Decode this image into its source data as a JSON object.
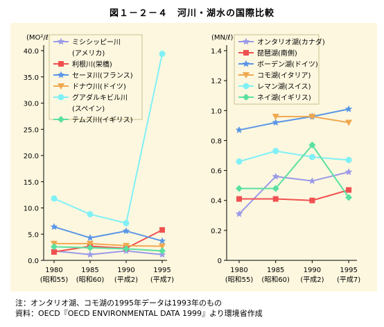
{
  "figure": {
    "title": "図１－２－４　河川・湖水の国際比較",
    "note_line1": "注：オンタリオ湖、コモ湖の1995年データは1993年のもの",
    "note_line2": "資料：OECD『OECD ENVIRONMENTAL DATA 1999』より環境省作成"
  },
  "chart_data": [
    {
      "type": "line",
      "name": "rivers",
      "ylabel": "(MO²/ℓ)",
      "ylim": [
        0,
        40
      ],
      "yticks": [
        "0.0",
        "5.0",
        "10.0",
        "15.0",
        "20.0",
        "25.0",
        "30.0",
        "35.0",
        "40.0"
      ],
      "ytick_values": [
        0,
        5,
        10,
        15,
        20,
        25,
        30,
        35,
        40
      ],
      "x": [
        1980,
        1985,
        1990,
        1995
      ],
      "xtick_labels": [
        "1980",
        "1985",
        "1990",
        "1995"
      ],
      "xtick_sublabels": [
        "(昭和55)",
        "(昭和60)",
        "(平成2)",
        "(平成7)"
      ],
      "grid": false,
      "legend_position": "top-left",
      "series": [
        {
          "name": "ミシシッピー川",
          "name2": "(アメリカ)",
          "color": "#9a9ae8",
          "marker": "star",
          "values": [
            1.8,
            1.1,
            1.8,
            1.1
          ]
        },
        {
          "name": "利根川(栄橋)",
          "color": "#f05050",
          "marker": "square",
          "values": [
            1.6,
            2.7,
            2.3,
            5.8
          ]
        },
        {
          "name": "セーヌ川(フランス)",
          "color": "#5a96e6",
          "marker": "star",
          "values": [
            6.4,
            4.3,
            5.6,
            3.7
          ]
        },
        {
          "name": "ドナウ川(ドイツ)",
          "color": "#f0a850",
          "marker": "triangle-down",
          "values": [
            3.2,
            3.2,
            2.8,
            2.7
          ]
        },
        {
          "name": "グアダルキビル川",
          "name2": "(スペイン)",
          "color": "#80f0f6",
          "marker": "circle",
          "values": [
            11.8,
            8.8,
            7.1,
            39.4
          ]
        },
        {
          "name": "テムズ川(イギリス)",
          "color": "#5ae0a0",
          "marker": "diamond",
          "values": [
            2.6,
            2.4,
            2.2,
            1.8
          ]
        }
      ]
    },
    {
      "type": "line",
      "name": "lakes",
      "ylabel": "(MN/ℓ)",
      "ylim": [
        0,
        1.4
      ],
      "yticks": [
        "0",
        "0.2",
        "0.4",
        "0.6",
        "0.8",
        "1.0",
        "1.2",
        "1.4"
      ],
      "ytick_values": [
        0,
        0.2,
        0.4,
        0.6,
        0.8,
        1.0,
        1.2,
        1.4
      ],
      "x": [
        1980,
        1985,
        1990,
        1995
      ],
      "xtick_labels": [
        "1980",
        "1985",
        "1990",
        "1995"
      ],
      "xtick_sublabels": [
        "(昭和55)",
        "(昭和60)",
        "(平成2)",
        "(平成7)"
      ],
      "grid": false,
      "legend_position": "top-left",
      "series": [
        {
          "name": "オンタリオ湖(カナダ)",
          "color": "#9a9ae8",
          "marker": "star",
          "values": [
            0.31,
            0.56,
            0.53,
            0.59
          ]
        },
        {
          "name": "琵琶湖(南側)",
          "color": "#f05050",
          "marker": "square",
          "values": [
            0.41,
            0.41,
            0.4,
            0.47
          ]
        },
        {
          "name": "ボーデン湖(ドイツ)",
          "color": "#5a96e6",
          "marker": "star",
          "values": [
            0.87,
            0.92,
            0.96,
            1.01
          ]
        },
        {
          "name": "コモ湖(イタリア)",
          "color": "#f0a850",
          "marker": "triangle-down",
          "values": [
            null,
            0.96,
            0.96,
            0.92
          ]
        },
        {
          "name": "レマン湖(スイス)",
          "color": "#80f0f6",
          "marker": "circle",
          "values": [
            0.66,
            0.73,
            0.69,
            0.67
          ]
        },
        {
          "name": "ネイ湖(イギリス)",
          "color": "#5ae0a0",
          "marker": "diamond",
          "values": [
            0.48,
            0.48,
            0.77,
            0.42
          ]
        }
      ]
    }
  ]
}
